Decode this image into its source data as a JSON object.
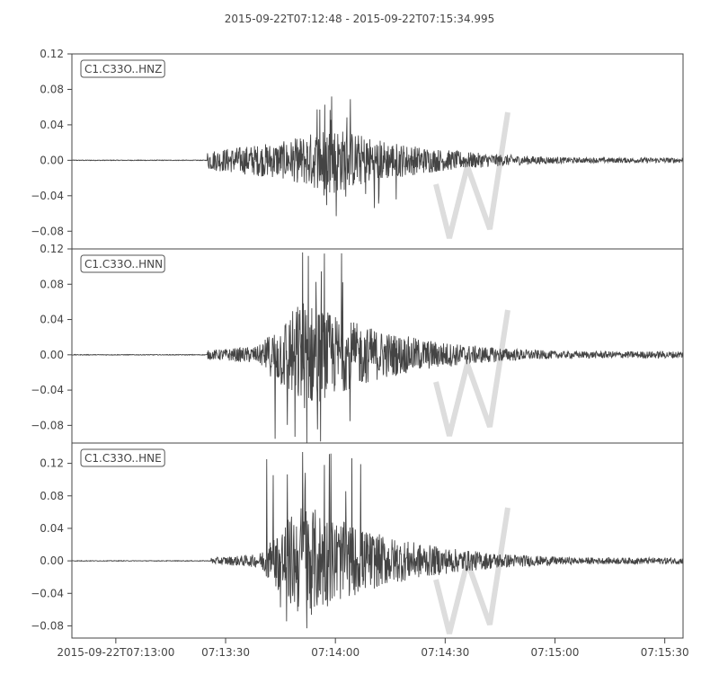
{
  "title": "2015-09-22T07:12:48  -  2015-09-22T07:15:34.995",
  "colors": {
    "trace": "#444444",
    "frame": "#444444",
    "watermark": "#dddddd",
    "background": "#ffffff"
  },
  "chart_data": [
    {
      "type": "line",
      "channel": "C1.C33O..HNZ",
      "ylim": [
        -0.1,
        0.12
      ],
      "yticks": [
        {
          "value": 0.12,
          "label": "0.12"
        },
        {
          "value": 0.08,
          "label": "0.08"
        },
        {
          "value": 0.04,
          "label": "0.04"
        },
        {
          "value": 0.0,
          "label": "0.00"
        },
        {
          "value": -0.04,
          "label": "−0.04"
        },
        {
          "value": -0.08,
          "label": "−0.08"
        }
      ],
      "onset_s": 37,
      "peak_s": 71,
      "peak_max": 0.072,
      "peak_min": -0.063,
      "pre_peak_amp": 0.022,
      "coda_amp": 0.003
    },
    {
      "type": "line",
      "channel": "C1.C33O..HNN",
      "ylim": [
        -0.1,
        0.12
      ],
      "yticks": [
        {
          "value": 0.12,
          "label": "0.12"
        },
        {
          "value": 0.08,
          "label": "0.08"
        },
        {
          "value": 0.04,
          "label": "0.04"
        },
        {
          "value": 0.0,
          "label": "0.00"
        },
        {
          "value": -0.04,
          "label": "−0.04"
        },
        {
          "value": -0.08,
          "label": "−0.08"
        }
      ],
      "onset_s": 37,
      "peak_s": 63,
      "peak_max": 0.116,
      "peak_min": -0.1,
      "pre_peak_amp": 0.01,
      "coda_amp": 0.004
    },
    {
      "type": "line",
      "channel": "C1.C33O..HNE",
      "ylim": [
        -0.095,
        0.145
      ],
      "yticks": [
        {
          "value": 0.12,
          "label": "0.12"
        },
        {
          "value": 0.08,
          "label": "0.08"
        },
        {
          "value": 0.04,
          "label": "0.04"
        },
        {
          "value": 0.0,
          "label": "0.00"
        },
        {
          "value": -0.04,
          "label": "−0.04"
        },
        {
          "value": -0.08,
          "label": "−0.08"
        }
      ],
      "onset_s": 38,
      "peak_s": 63,
      "peak_max": 0.134,
      "peak_min": -0.083,
      "pre_peak_amp": 0.008,
      "coda_amp": 0.004
    }
  ],
  "x_axis": {
    "start": "2015-09-22T07:12:48",
    "end": "2015-09-22T07:15:34.995",
    "duration_s": 166.995,
    "ticks": [
      {
        "value_s": 12,
        "label": "2015-09-22T07:13:00"
      },
      {
        "value_s": 42,
        "label": "07:13:30"
      },
      {
        "value_s": 72,
        "label": "07:14:00"
      },
      {
        "value_s": 102,
        "label": "07:14:30"
      },
      {
        "value_s": 132,
        "label": "07:15:00"
      },
      {
        "value_s": 162,
        "label": "07:15:30"
      }
    ]
  }
}
